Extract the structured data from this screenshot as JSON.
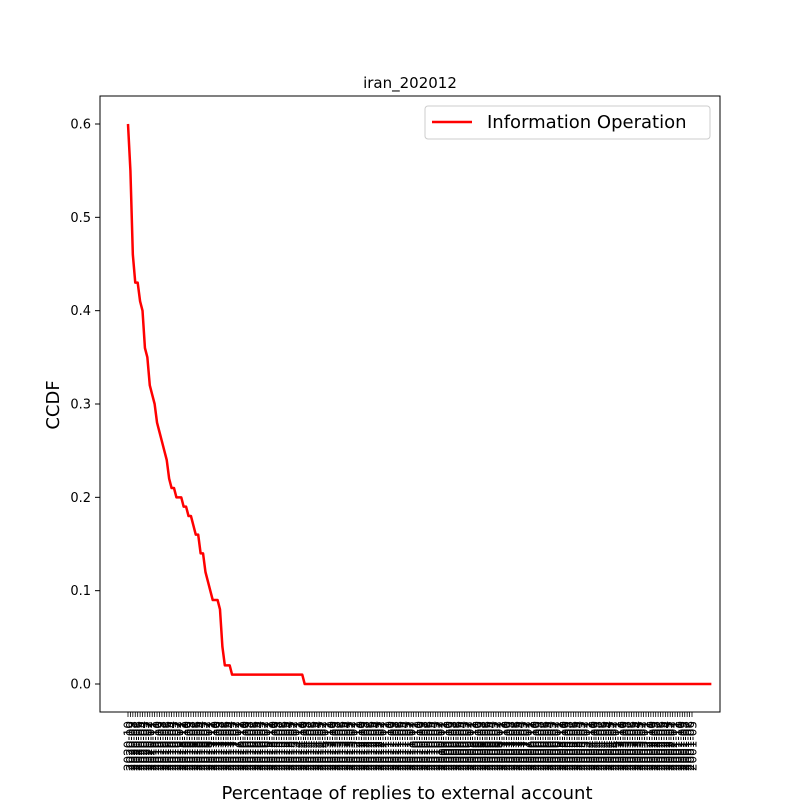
{
  "chart_data": {
    "type": "line",
    "title": "iran_202012",
    "xlabel": "Percentage of replies to external account",
    "ylabel": "CCDF",
    "ylim": [
      -0.03,
      0.63
    ],
    "y_ticks": [
      0.0,
      0.1,
      0.2,
      0.3,
      0.4,
      0.5,
      0.6
    ],
    "y_tick_labels": [
      "0.0",
      "0.1",
      "0.2",
      "0.3",
      "0.4",
      "0.5",
      "0.6"
    ],
    "grid": false,
    "legend_position": "upper right",
    "x_tick_labels": [
      "2020-10",
      "2020-09",
      "2020-08",
      "2020-07",
      "2020-06",
      "2020-05",
      "2020-04",
      "2020-03",
      "2020-02",
      "2020-01",
      "2019-12",
      "2019-11",
      "2019-10",
      "2019-09",
      "2019-08",
      "2019-07",
      "2019-06",
      "2019-05",
      "2019-04",
      "2019-03",
      "2019-02",
      "2019-01",
      "2018-12",
      "2018-11",
      "2018-10",
      "2018-09",
      "2018-08",
      "2018-07",
      "2018-06",
      "2018-05",
      "2018-04",
      "2018-03",
      "2018-02",
      "2018-01",
      "2017-12",
      "2017-11",
      "2017-10",
      "2017-09",
      "2017-08",
      "2017-07",
      "2017-06",
      "2017-05",
      "2017-04",
      "2017-03",
      "2017-02",
      "2017-01",
      "2016-12",
      "2016-11",
      "2016-10",
      "2016-09",
      "2016-08",
      "2016-07",
      "2016-06",
      "2016-05",
      "2016-04",
      "2016-03",
      "2016-02",
      "2016-01",
      "2015-12",
      "2015-11",
      "2015-10",
      "2015-09",
      "2015-08",
      "2015-07",
      "2015-06",
      "2015-05",
      "2015-04",
      "2015-03",
      "2015-02",
      "2015-01",
      "2014-12",
      "2014-11",
      "2014-10",
      "2014-09",
      "2014-08",
      "2014-07",
      "2014-06",
      "2014-05",
      "2014-04",
      "2014-03",
      "2014-02",
      "2014-01",
      "2013-12",
      "2013-11",
      "2013-10",
      "2013-09",
      "2013-08",
      "2013-07",
      "2013-06",
      "2013-05",
      "2013-04",
      "2013-03",
      "2013-02",
      "2013-01",
      "2012-12",
      "2012-11",
      "2012-10",
      "2012-09",
      "2012-08",
      "2012-07",
      "2012-06",
      "2012-05",
      "2012-04",
      "2012-03",
      "2012-02",
      "2012-01",
      "2011-12",
      "2011-11",
      "2011-10",
      "2011-09",
      "2011-08",
      "2011-07",
      "2011-06",
      "2011-05",
      "2011-04",
      "2011-03",
      "2011-02",
      "2011-01",
      "2010-12",
      "2010-11",
      "2010-10",
      "2010-09",
      "2010-08",
      "2010-07",
      "2010-06",
      "2010-05",
      "2010-04",
      "2010-03",
      "2010-02",
      "2010-01",
      "2009-12",
      "2009-11",
      "2009-10",
      "2009-09",
      "2009-08",
      "2009-07",
      "2009-06",
      "2009-05",
      "2009-04",
      "2009-03",
      "2009-02",
      "2009-01",
      "2008-12",
      "2008-11",
      "2008-10",
      "2008-09",
      "2008-08",
      "2008-07",
      "2008-06",
      "2008-05",
      "2008-04",
      "2008-03",
      "2008-02",
      "2008-01",
      "2007-12",
      "2007-11",
      "2007-10",
      "2007-09",
      "2007-08",
      "2007-07",
      "2007-06",
      "2007-05",
      "2007-04",
      "2007-03",
      "2007-02",
      "2007-01",
      "2006-12",
      "2006-11",
      "2006-10",
      "2006-09",
      "2006-08",
      "2006-07",
      "2006-06",
      "2006-05",
      "2006-04",
      "2006-03",
      "2006-02",
      "2006-01",
      "2005-12",
      "2005-11",
      "2005-10",
      "2005-09",
      "2005-08",
      "2005-07",
      "2005-06",
      "2005-05",
      "2005-04",
      "2005-03",
      "2005-02",
      "2005-01",
      "2004-12",
      "2004-11",
      "2004-10",
      "2004-09",
      "2004-08",
      "2004-07",
      "2004-06",
      "2004-05",
      "2004-04",
      "2004-03",
      "2004-02",
      "2004-01",
      "2003-12",
      "2003-11",
      "2003-10",
      "2003-09",
      "2003-08",
      "2003-07",
      "2003-06",
      "2003-05",
      "2003-04",
      "2003-03",
      "2003-02",
      "2003-01",
      "2002-12",
      "2002-11",
      "2002-10",
      "2002-09",
      "2002-08",
      "2002-07",
      "2002-06",
      "2002-05",
      "2002-04",
      "2002-03",
      "2002-02",
      "2002-01",
      "2001-12",
      "2001-11",
      "2001-10",
      "2001-09",
      "2001-08",
      "2001-07",
      "2001-06",
      "2001-05"
    ],
    "series": [
      {
        "name": "Information Operation",
        "color": "#ff0000",
        "values": [
          0.6,
          0.55,
          0.46,
          0.43,
          0.43,
          0.41,
          0.4,
          0.36,
          0.35,
          0.32,
          0.31,
          0.3,
          0.28,
          0.27,
          0.26,
          0.25,
          0.24,
          0.22,
          0.21,
          0.21,
          0.2,
          0.2,
          0.2,
          0.19,
          0.19,
          0.18,
          0.18,
          0.17,
          0.16,
          0.16,
          0.14,
          0.14,
          0.12,
          0.11,
          0.1,
          0.09,
          0.09,
          0.09,
          0.08,
          0.04,
          0.02,
          0.02,
          0.02,
          0.01,
          0.01,
          0.01,
          0.01,
          0.01,
          0.01,
          0.01,
          0.01,
          0.01,
          0.01,
          0.01,
          0.01,
          0.01,
          0.01,
          0.01,
          0.01,
          0.01,
          0.01,
          0.01,
          0.01,
          0.01,
          0.01,
          0.01,
          0.01,
          0.01,
          0.01,
          0.01,
          0.01,
          0.01,
          0.01,
          0.0,
          0.0,
          0.0,
          0.0,
          0.0,
          0.0,
          0.0,
          0.0,
          0.0,
          0.0,
          0.0,
          0.0,
          0.0,
          0.0,
          0.0,
          0.0,
          0.0,
          0.0,
          0.0,
          0.0,
          0.0,
          0.0,
          0.0,
          0.0,
          0.0,
          0.0,
          0.0,
          0.0,
          0.0,
          0.0,
          0.0,
          0.0,
          0.0,
          0.0,
          0.0,
          0.0,
          0.0,
          0.0,
          0.0,
          0.0,
          0.0,
          0.0,
          0.0,
          0.0,
          0.0,
          0.0,
          0.0,
          0.0,
          0.0,
          0.0,
          0.0,
          0.0,
          0.0,
          0.0,
          0.0,
          0.0,
          0.0,
          0.0,
          0.0,
          0.0,
          0.0,
          0.0,
          0.0,
          0.0,
          0.0,
          0.0,
          0.0,
          0.0,
          0.0,
          0.0,
          0.0,
          0.0,
          0.0,
          0.0,
          0.0,
          0.0,
          0.0,
          0.0,
          0.0,
          0.0,
          0.0,
          0.0,
          0.0,
          0.0,
          0.0,
          0.0,
          0.0,
          0.0,
          0.0,
          0.0,
          0.0,
          0.0,
          0.0,
          0.0,
          0.0,
          0.0,
          0.0,
          0.0,
          0.0,
          0.0,
          0.0,
          0.0,
          0.0,
          0.0,
          0.0,
          0.0,
          0.0,
          0.0,
          0.0,
          0.0,
          0.0,
          0.0,
          0.0,
          0.0,
          0.0,
          0.0,
          0.0,
          0.0,
          0.0,
          0.0,
          0.0,
          0.0,
          0.0,
          0.0,
          0.0,
          0.0,
          0.0,
          0.0,
          0.0,
          0.0,
          0.0,
          0.0,
          0.0,
          0.0,
          0.0,
          0.0,
          0.0,
          0.0,
          0.0,
          0.0,
          0.0,
          0.0,
          0.0,
          0.0,
          0.0,
          0.0,
          0.0,
          0.0,
          0.0,
          0.0,
          0.0,
          0.0,
          0.0,
          0.0,
          0.0,
          0.0,
          0.0,
          0.0,
          0.0,
          0.0,
          0.0,
          0.0,
          0.0,
          0.0,
          0.0,
          0.0,
          0.0,
          0.0,
          0.0
        ]
      }
    ]
  }
}
